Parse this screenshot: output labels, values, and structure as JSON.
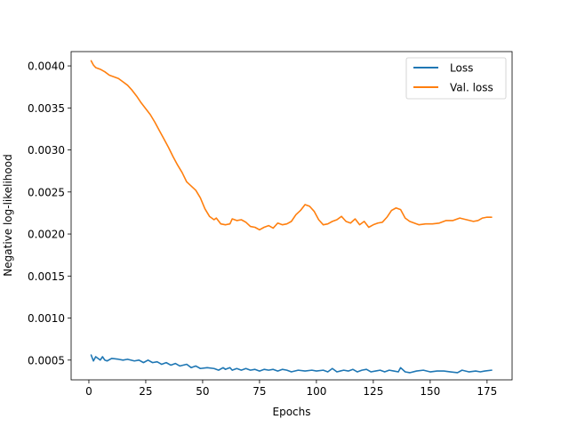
{
  "chart_data": {
    "type": "line",
    "title": "",
    "xlabel": "Epochs",
    "ylabel": "Negative log-likelihood",
    "xlim": [
      -7.8,
      186.0
    ],
    "ylim": [
      0.000265,
      0.00417
    ],
    "x_ticks": [
      0,
      25,
      50,
      75,
      100,
      125,
      150,
      175
    ],
    "x_tick_labels": [
      "0",
      "25",
      "50",
      "75",
      "100",
      "125",
      "150",
      "175"
    ],
    "y_ticks": [
      0.0005,
      0.001,
      0.0015,
      0.002,
      0.0025,
      0.003,
      0.0035,
      0.004
    ],
    "y_tick_labels": [
      "0.0005",
      "0.0010",
      "0.0015",
      "0.0020",
      "0.0025",
      "0.0030",
      "0.0035",
      "0.0040"
    ],
    "grid": false,
    "legend_position": "top-right",
    "series": [
      {
        "name": "Loss",
        "color": "#1f77b4",
        "points": [
          [
            1,
            0.00056
          ],
          [
            2,
            0.00049
          ],
          [
            3,
            0.00054
          ],
          [
            4,
            0.00052
          ],
          [
            5,
            0.0005
          ],
          [
            6,
            0.00054
          ],
          [
            7,
            0.0005
          ],
          [
            8,
            0.00049
          ],
          [
            10,
            0.00052
          ],
          [
            13,
            0.00051
          ],
          [
            15,
            0.0005
          ],
          [
            17,
            0.00051
          ],
          [
            20,
            0.00049
          ],
          [
            22,
            0.0005
          ],
          [
            24,
            0.00047
          ],
          [
            26,
            0.0005
          ],
          [
            28,
            0.00047
          ],
          [
            30,
            0.00048
          ],
          [
            32,
            0.00045
          ],
          [
            34,
            0.00047
          ],
          [
            36,
            0.00044
          ],
          [
            38,
            0.00046
          ],
          [
            40,
            0.00043
          ],
          [
            43,
            0.00045
          ],
          [
            45,
            0.00041
          ],
          [
            47,
            0.00043
          ],
          [
            49,
            0.0004
          ],
          [
            52,
            0.00041
          ],
          [
            55,
            0.0004
          ],
          [
            57,
            0.00038
          ],
          [
            59,
            0.00041
          ],
          [
            60,
            0.00039
          ],
          [
            62,
            0.00041
          ],
          [
            63,
            0.00038
          ],
          [
            65,
            0.0004
          ],
          [
            67,
            0.00038
          ],
          [
            69,
            0.0004
          ],
          [
            71,
            0.00038
          ],
          [
            73,
            0.00039
          ],
          [
            75,
            0.00037
          ],
          [
            77,
            0.00039
          ],
          [
            79,
            0.00038
          ],
          [
            81,
            0.00039
          ],
          [
            83,
            0.00037
          ],
          [
            85,
            0.00039
          ],
          [
            87,
            0.00038
          ],
          [
            89,
            0.00036
          ],
          [
            92,
            0.00038
          ],
          [
            95,
            0.00037
          ],
          [
            98,
            0.00038
          ],
          [
            100,
            0.00037
          ],
          [
            103,
            0.00038
          ],
          [
            105,
            0.00036
          ],
          [
            107,
            0.0004
          ],
          [
            109,
            0.00036
          ],
          [
            112,
            0.00038
          ],
          [
            114,
            0.00037
          ],
          [
            116,
            0.00039
          ],
          [
            118,
            0.00036
          ],
          [
            120,
            0.00038
          ],
          [
            122,
            0.00039
          ],
          [
            124,
            0.00036
          ],
          [
            126,
            0.00037
          ],
          [
            128,
            0.00038
          ],
          [
            130,
            0.00036
          ],
          [
            132,
            0.00038
          ],
          [
            134,
            0.00037
          ],
          [
            136,
            0.00036
          ],
          [
            137,
            0.00041
          ],
          [
            139,
            0.00036
          ],
          [
            141,
            0.00035
          ],
          [
            144,
            0.00037
          ],
          [
            147,
            0.00038
          ],
          [
            150,
            0.00036
          ],
          [
            153,
            0.00037
          ],
          [
            156,
            0.00037
          ],
          [
            159,
            0.00036
          ],
          [
            162,
            0.00035
          ],
          [
            164,
            0.00038
          ],
          [
            167,
            0.00036
          ],
          [
            170,
            0.00037
          ],
          [
            172,
            0.00036
          ],
          [
            174,
            0.00037
          ],
          [
            177,
            0.00038
          ]
        ]
      },
      {
        "name": "Val. loss",
        "color": "#ff7f0e",
        "points": [
          [
            1,
            0.00406
          ],
          [
            2,
            0.00401
          ],
          [
            3,
            0.00398
          ],
          [
            5,
            0.00396
          ],
          [
            7,
            0.00393
          ],
          [
            9,
            0.00389
          ],
          [
            11,
            0.00387
          ],
          [
            13,
            0.00385
          ],
          [
            15,
            0.00381
          ],
          [
            17,
            0.00377
          ],
          [
            19,
            0.00371
          ],
          [
            21,
            0.00364
          ],
          [
            23,
            0.00356
          ],
          [
            25,
            0.00349
          ],
          [
            27,
            0.00342
          ],
          [
            29,
            0.00333
          ],
          [
            31,
            0.00323
          ],
          [
            33,
            0.00313
          ],
          [
            35,
            0.00303
          ],
          [
            37,
            0.00292
          ],
          [
            39,
            0.00282
          ],
          [
            41,
            0.00273
          ],
          [
            43,
            0.00262
          ],
          [
            45,
            0.00257
          ],
          [
            47,
            0.00252
          ],
          [
            49,
            0.00243
          ],
          [
            51,
            0.0023
          ],
          [
            53,
            0.00221
          ],
          [
            55,
            0.00217
          ],
          [
            56,
            0.00219
          ],
          [
            58,
            0.00212
          ],
          [
            60,
            0.00211
          ],
          [
            62,
            0.00212
          ],
          [
            63,
            0.00218
          ],
          [
            65,
            0.00216
          ],
          [
            67,
            0.00217
          ],
          [
            69,
            0.00214
          ],
          [
            71,
            0.00209
          ],
          [
            73,
            0.00208
          ],
          [
            75,
            0.00205
          ],
          [
            77,
            0.00208
          ],
          [
            79,
            0.0021
          ],
          [
            81,
            0.00207
          ],
          [
            83,
            0.00213
          ],
          [
            85,
            0.00211
          ],
          [
            87,
            0.00212
          ],
          [
            89,
            0.00215
          ],
          [
            91,
            0.00223
          ],
          [
            93,
            0.00228
          ],
          [
            95,
            0.00235
          ],
          [
            97,
            0.00233
          ],
          [
            99,
            0.00227
          ],
          [
            101,
            0.00217
          ],
          [
            103,
            0.00211
          ],
          [
            105,
            0.00212
          ],
          [
            107,
            0.00215
          ],
          [
            109,
            0.00217
          ],
          [
            111,
            0.00221
          ],
          [
            113,
            0.00215
          ],
          [
            115,
            0.00213
          ],
          [
            117,
            0.00218
          ],
          [
            119,
            0.00211
          ],
          [
            121,
            0.00215
          ],
          [
            123,
            0.00208
          ],
          [
            125,
            0.00211
          ],
          [
            127,
            0.00213
          ],
          [
            129,
            0.00214
          ],
          [
            131,
            0.0022
          ],
          [
            133,
            0.00228
          ],
          [
            135,
            0.00231
          ],
          [
            137,
            0.00229
          ],
          [
            139,
            0.00219
          ],
          [
            141,
            0.00215
          ],
          [
            143,
            0.00213
          ],
          [
            145,
            0.00211
          ],
          [
            148,
            0.00212
          ],
          [
            151,
            0.00212
          ],
          [
            154,
            0.00213
          ],
          [
            157,
            0.00216
          ],
          [
            160,
            0.00216
          ],
          [
            163,
            0.00219
          ],
          [
            166,
            0.00217
          ],
          [
            169,
            0.00215
          ],
          [
            171,
            0.00216
          ],
          [
            173,
            0.00219
          ],
          [
            175,
            0.0022
          ],
          [
            177,
            0.0022
          ]
        ]
      }
    ]
  }
}
